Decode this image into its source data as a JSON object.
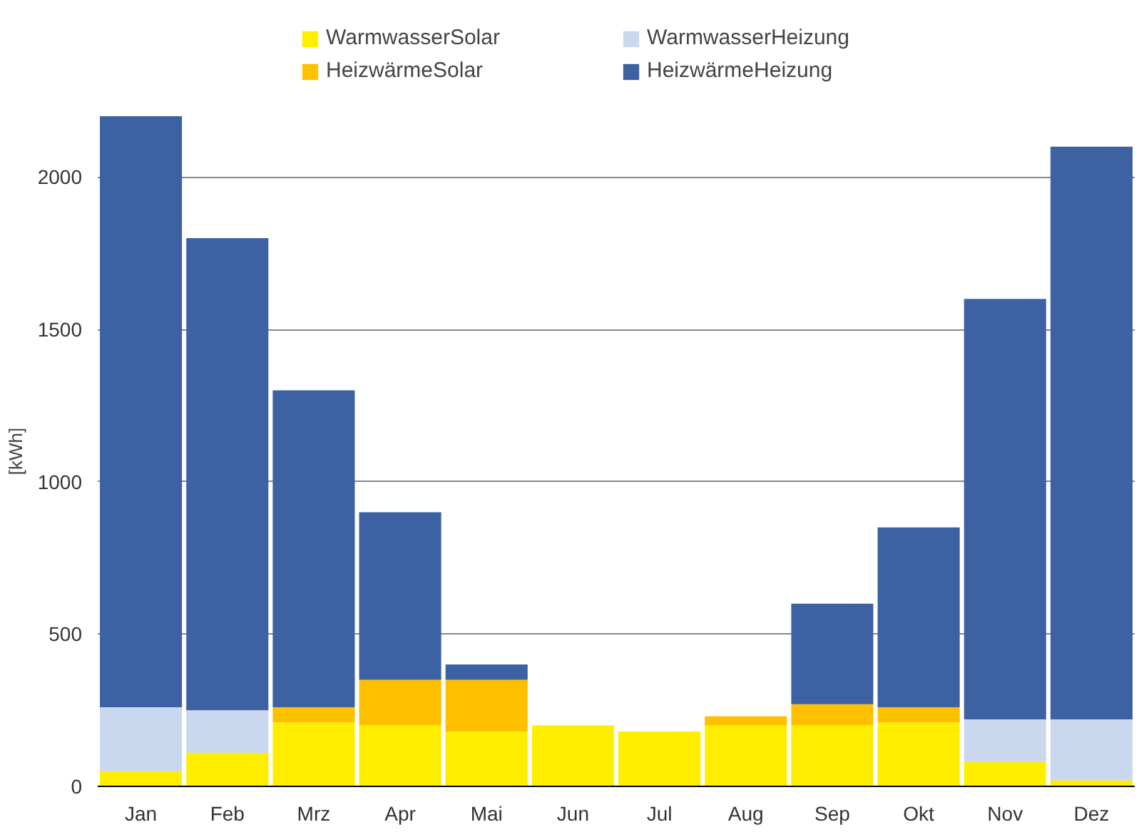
{
  "chart_data": {
    "type": "bar",
    "stacked": true,
    "ylabel": "[kWh]",
    "categories": [
      "Jan",
      "Feb",
      "Mrz",
      "Apr",
      "Mai",
      "Jun",
      "Jul",
      "Aug",
      "Sep",
      "Okt",
      "Nov",
      "Dez"
    ],
    "series": [
      {
        "name": "WarmwasserSolar",
        "color": "#ffee00",
        "values": [
          50,
          110,
          210,
          200,
          180,
          200,
          180,
          200,
          200,
          210,
          80,
          20
        ]
      },
      {
        "name": "WarmwasserHeizung",
        "color": "#c9d8ee",
        "values": [
          210,
          140,
          0,
          0,
          0,
          0,
          0,
          0,
          0,
          0,
          140,
          200
        ]
      },
      {
        "name": "HeizwärmeSolar",
        "color": "#ffc000",
        "values": [
          0,
          0,
          50,
          150,
          170,
          0,
          0,
          30,
          70,
          50,
          0,
          0
        ]
      },
      {
        "name": "HeizwärmeHeizung",
        "color": "#3d62a3",
        "values": [
          1940,
          1550,
          1040,
          550,
          50,
          0,
          0,
          0,
          330,
          590,
          1380,
          1880
        ]
      }
    ],
    "ylim": [
      0,
      2200
    ],
    "yticks": [
      0,
      500,
      1000,
      1500,
      2000
    ],
    "grid": "y",
    "legend": "top"
  }
}
